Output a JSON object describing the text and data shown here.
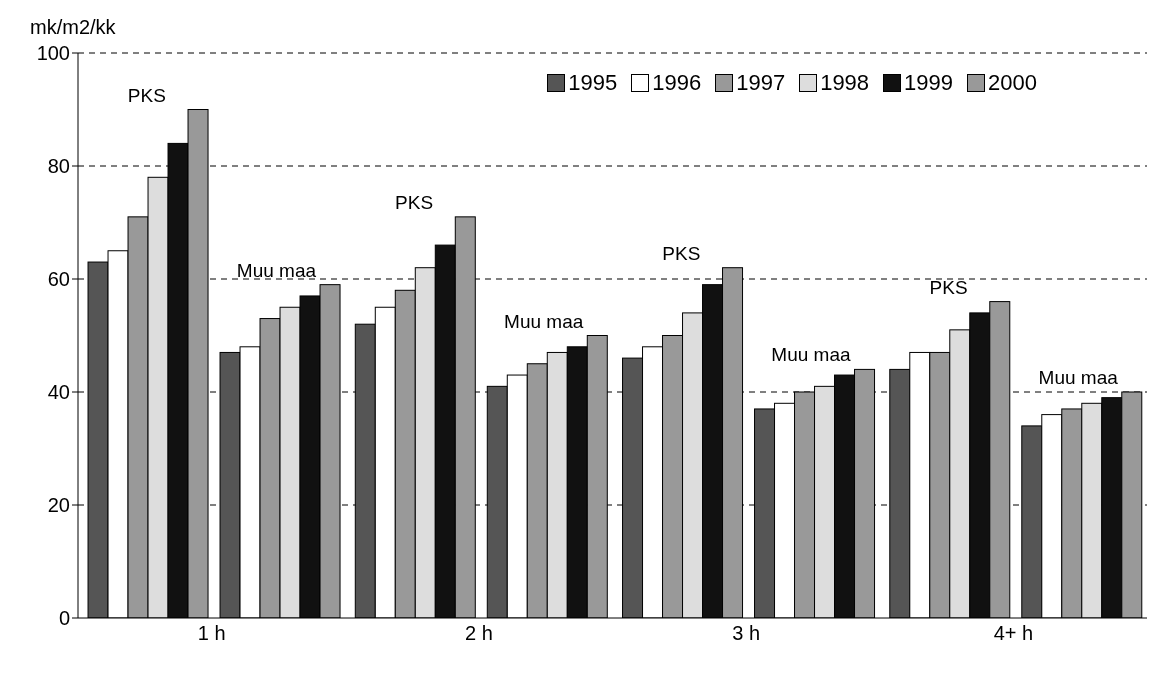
{
  "chart_data": {
    "type": "bar",
    "ylabel": "mk/m2/kk",
    "categories": [
      "1 h",
      "2 h",
      "3 h",
      "4+ h"
    ],
    "series": [
      {
        "name": "1995",
        "color": "#555555",
        "values": [
          63,
          52,
          46,
          44
        ]
      },
      {
        "name": "1996",
        "color": "#ffffff",
        "values": [
          65,
          55,
          48,
          47
        ]
      },
      {
        "name": "1997",
        "color": "#999999",
        "values": [
          71,
          58,
          50,
          47
        ]
      },
      {
        "name": "1998",
        "color": "#dddddd",
        "values": [
          78,
          62,
          54,
          51
        ]
      },
      {
        "name": "1999",
        "color": "#111111",
        "values": [
          84,
          66,
          59,
          54
        ]
      },
      {
        "name": "2000",
        "color": "#999999",
        "values": [
          90,
          71,
          62,
          56
        ]
      },
      {
        "color": "#555555",
        "values": [
          47,
          41,
          37,
          34
        ]
      },
      {
        "color": "#ffffff",
        "values": [
          48,
          43,
          38,
          36
        ]
      },
      {
        "color": "#999999",
        "values": [
          53,
          45,
          40,
          37
        ]
      },
      {
        "color": "#dddddd",
        "values": [
          55,
          47,
          41,
          38
        ]
      },
      {
        "color": "#111111",
        "values": [
          57,
          48,
          43,
          39
        ]
      },
      {
        "color": "#999999",
        "values": [
          59,
          50,
          44,
          40
        ]
      }
    ],
    "annotations": [
      {
        "text": "PKS",
        "x": "1 h",
        "y": 90
      },
      {
        "text": "Muu maa",
        "x": "1 h",
        "y": 59
      },
      {
        "text": "PKS",
        "x": "2 h",
        "y": 71
      },
      {
        "text": "Muu maa",
        "x": "2 h",
        "y": 50
      },
      {
        "text": "PKS",
        "x": "3 h",
        "y": 62
      },
      {
        "text": "Muu maa",
        "x": "3 h",
        "y": 44
      },
      {
        "text": "PKS",
        "x": "4+ h",
        "y": 56
      },
      {
        "text": "Muu maa",
        "x": "4+ h",
        "y": 40
      }
    ],
    "ylim": [
      0,
      100
    ],
    "yticks": [
      0,
      20,
      40,
      60,
      80,
      100
    ],
    "grid": "y",
    "legend": "top right"
  }
}
